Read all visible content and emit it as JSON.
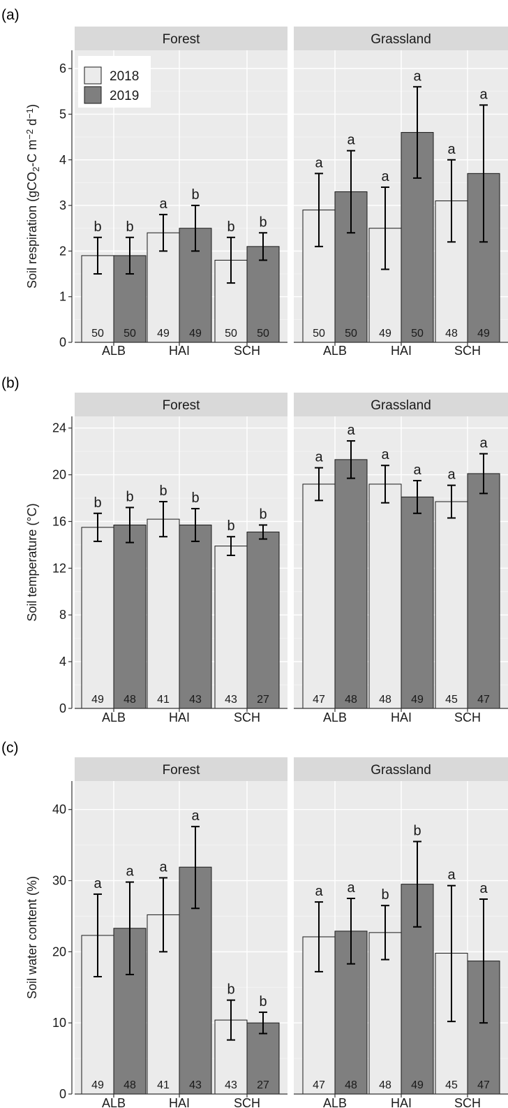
{
  "colors": {
    "panel_bg": "#EBEBEB",
    "strip_bg": "#D9D9D9",
    "grid_major": "#FFFFFF",
    "bar_2018": "#EBEBEB",
    "bar_2019": "#7F7F7F",
    "bar_border": "#1A1A1A"
  },
  "legend": {
    "items": [
      "2018",
      "2019"
    ],
    "placement": "top-left inside Forest panel of (a)"
  },
  "chart_data": [
    {
      "type": "bar",
      "panel_label": "(a)",
      "ylabel": "Soil respiration (gCO2-C m-2 d-1)",
      "ylabel_parts": {
        "pre": "Soil respiration (gCO",
        "sub": "2",
        "mid": "-C m",
        "sup1": "−2",
        "mid2": " d",
        "sup2": "−1",
        "post": ")"
      },
      "ylim": [
        0,
        6.4
      ],
      "yticks": [
        0,
        1,
        2,
        3,
        4,
        5,
        6
      ],
      "categories": [
        "ALB",
        "HAI",
        "SCH"
      ],
      "facets": [
        {
          "name": "Forest",
          "series": [
            {
              "name": "2018",
              "values": [
                1.9,
                2.4,
                1.8
              ],
              "err_low": [
                1.5,
                2.0,
                1.3
              ],
              "err_high": [
                2.3,
                2.8,
                2.3
              ],
              "letters": [
                "b",
                "a",
                "b"
              ],
              "n": [
                "50",
                "49",
                "50"
              ]
            },
            {
              "name": "2019",
              "values": [
                1.9,
                2.5,
                2.1
              ],
              "err_low": [
                1.5,
                2.0,
                1.8
              ],
              "err_high": [
                2.3,
                3.0,
                2.4
              ],
              "letters": [
                "b",
                "b",
                "b"
              ],
              "n": [
                "50",
                "49",
                "50"
              ]
            }
          ]
        },
        {
          "name": "Grassland",
          "series": [
            {
              "name": "2018",
              "values": [
                2.9,
                2.5,
                3.1
              ],
              "err_low": [
                2.1,
                1.6,
                2.2
              ],
              "err_high": [
                3.7,
                3.4,
                4.0
              ],
              "letters": [
                "a",
                "a",
                "a"
              ],
              "n": [
                "50",
                "49",
                "48"
              ]
            },
            {
              "name": "2019",
              "values": [
                3.3,
                4.6,
                3.7
              ],
              "err_low": [
                2.4,
                3.6,
                2.2
              ],
              "err_high": [
                4.2,
                5.6,
                5.2
              ],
              "letters": [
                "a",
                "a",
                "a"
              ],
              "n": [
                "50",
                "50",
                "49"
              ]
            }
          ]
        }
      ]
    },
    {
      "type": "bar",
      "panel_label": "(b)",
      "ylabel": "Soil temperature (°C)",
      "ylim": [
        0,
        25
      ],
      "yticks": [
        0,
        4,
        8,
        12,
        16,
        20,
        24
      ],
      "categories": [
        "ALB",
        "HAI",
        "SCH"
      ],
      "facets": [
        {
          "name": "Forest",
          "series": [
            {
              "name": "2018",
              "values": [
                15.5,
                16.2,
                13.9
              ],
              "err_low": [
                14.3,
                14.7,
                13.1
              ],
              "err_high": [
                16.7,
                17.7,
                14.7
              ],
              "letters": [
                "b",
                "b",
                "b"
              ],
              "n": [
                "49",
                "41",
                "43"
              ]
            },
            {
              "name": "2019",
              "values": [
                15.7,
                15.7,
                15.1
              ],
              "err_low": [
                14.2,
                14.3,
                14.5
              ],
              "err_high": [
                17.2,
                17.1,
                15.7
              ],
              "letters": [
                "b",
                "b",
                "b"
              ],
              "n": [
                "48",
                "43",
                "27"
              ]
            }
          ]
        },
        {
          "name": "Grassland",
          "series": [
            {
              "name": "2018",
              "values": [
                19.2,
                19.2,
                17.7
              ],
              "err_low": [
                17.8,
                17.6,
                16.3
              ],
              "err_high": [
                20.6,
                20.8,
                19.1
              ],
              "letters": [
                "a",
                "a",
                "a"
              ],
              "n": [
                "47",
                "48",
                "45"
              ]
            },
            {
              "name": "2019",
              "values": [
                21.3,
                18.1,
                20.1
              ],
              "err_low": [
                19.7,
                16.7,
                18.4
              ],
              "err_high": [
                22.9,
                19.5,
                21.8
              ],
              "letters": [
                "a",
                "a",
                "a"
              ],
              "n": [
                "48",
                "49",
                "47"
              ]
            }
          ]
        }
      ]
    },
    {
      "type": "bar",
      "panel_label": "(c)",
      "ylabel": "Soil water content (%)",
      "ylim": [
        0,
        44
      ],
      "yticks": [
        0,
        10,
        20,
        30,
        40
      ],
      "categories": [
        "ALB",
        "HAI",
        "SCH"
      ],
      "facets": [
        {
          "name": "Forest",
          "series": [
            {
              "name": "2018",
              "values": [
                22.3,
                25.2,
                10.4
              ],
              "err_low": [
                16.5,
                20.0,
                7.6
              ],
              "err_high": [
                28.1,
                30.4,
                13.2
              ],
              "letters": [
                "a",
                "a",
                "b"
              ],
              "n": [
                "49",
                "41",
                "43"
              ]
            },
            {
              "name": "2019",
              "values": [
                23.3,
                31.9,
                10.0
              ],
              "err_low": [
                16.8,
                26.1,
                8.5
              ],
              "err_high": [
                29.8,
                37.6,
                11.5
              ],
              "letters": [
                "a",
                "a",
                "b"
              ],
              "n": [
                "48",
                "43",
                "27"
              ]
            }
          ]
        },
        {
          "name": "Grassland",
          "series": [
            {
              "name": "2018",
              "values": [
                22.1,
                22.7,
                19.8
              ],
              "err_low": [
                17.2,
                18.9,
                10.2
              ],
              "err_high": [
                27.0,
                26.5,
                29.3
              ],
              "letters": [
                "a",
                "b",
                "a"
              ],
              "n": [
                "47",
                "48",
                "45"
              ]
            },
            {
              "name": "2019",
              "values": [
                22.9,
                29.5,
                18.7
              ],
              "err_low": [
                18.3,
                23.5,
                10.0
              ],
              "err_high": [
                27.5,
                35.5,
                27.4
              ],
              "letters": [
                "a",
                "b",
                "a"
              ],
              "n": [
                "48",
                "49",
                "47"
              ]
            }
          ]
        }
      ]
    }
  ]
}
